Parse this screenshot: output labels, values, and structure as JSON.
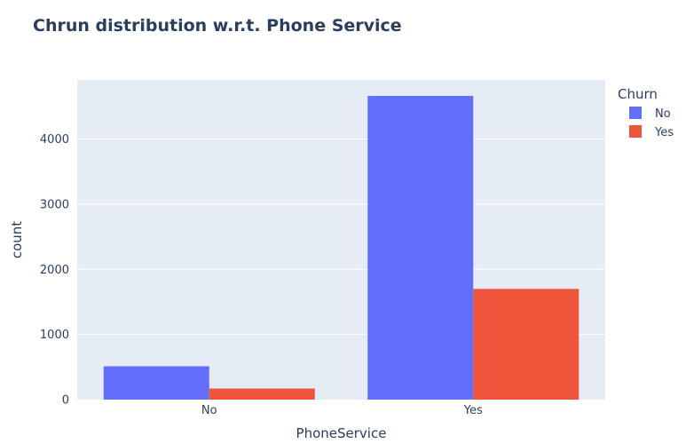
{
  "chart_data": {
    "type": "bar",
    "title": "Chrun distribution w.r.t. Phone Service",
    "xlabel": "PhoneService",
    "ylabel": "count",
    "categories": [
      "No",
      "Yes"
    ],
    "series": [
      {
        "name": "No",
        "values": [
          512,
          4662
        ],
        "color": "#636efa"
      },
      {
        "name": "Yes",
        "values": [
          170,
          1699
        ],
        "color": "#ef553b"
      }
    ],
    "yticks": [
      0,
      1000,
      2000,
      3000,
      4000
    ],
    "ylim": [
      0,
      4907
    ],
    "grid": true,
    "legend": {
      "title": "Churn",
      "placement": "top-right"
    },
    "background_color": "#e5ecf6"
  }
}
